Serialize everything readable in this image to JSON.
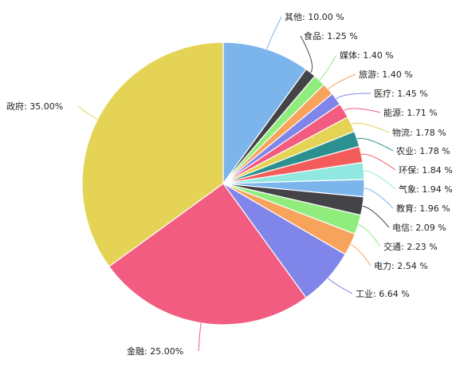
{
  "chart_data": {
    "type": "pie",
    "slices": [
      {
        "label": "其他: 10.00 %",
        "name": "其他",
        "value": 10.0,
        "color": "#7cb5ec"
      },
      {
        "label": "食品: 1.25 %",
        "name": "食品",
        "value": 1.25,
        "color": "#434348"
      },
      {
        "label": "媒体: 1.40 %",
        "name": "媒体",
        "value": 1.4,
        "color": "#90ed7d"
      },
      {
        "label": "旅游: 1.40 %",
        "name": "旅游",
        "value": 1.4,
        "color": "#f7a35c"
      },
      {
        "label": "医疗: 1.45 %",
        "name": "医疗",
        "value": 1.45,
        "color": "#8085e9"
      },
      {
        "label": "能源: 1.71 %",
        "name": "能源",
        "value": 1.71,
        "color": "#f15c80"
      },
      {
        "label": "物流: 1.78 %",
        "name": "物流",
        "value": 1.78,
        "color": "#e4d354"
      },
      {
        "label": "农业: 1.78 %",
        "name": "农业",
        "value": 1.78,
        "color": "#2b908f"
      },
      {
        "label": "环保: 1.84 %",
        "name": "环保",
        "value": 1.84,
        "color": "#f45b5b"
      },
      {
        "label": "气象: 1.94 %",
        "name": "气象",
        "value": 1.94,
        "color": "#91e8e1"
      },
      {
        "label": "教育: 1.96 %",
        "name": "教育",
        "value": 1.96,
        "color": "#7cb5ec"
      },
      {
        "label": "电信: 2.09 %",
        "name": "电信",
        "value": 2.09,
        "color": "#434348"
      },
      {
        "label": "交通: 2.23 %",
        "name": "交通",
        "value": 2.23,
        "color": "#90ed7d"
      },
      {
        "label": "电力: 2.54 %",
        "name": "电力",
        "value": 2.54,
        "color": "#f7a35c"
      },
      {
        "label": "工业: 6.64 %",
        "name": "工业",
        "value": 6.64,
        "color": "#8085e9"
      },
      {
        "label": "金融: 25.00%",
        "name": "金融",
        "value": 25.0,
        "color": "#f15c80"
      },
      {
        "label": "政府: 35.00%",
        "name": "政府",
        "value": 35.0,
        "color": "#e4d354"
      }
    ]
  }
}
